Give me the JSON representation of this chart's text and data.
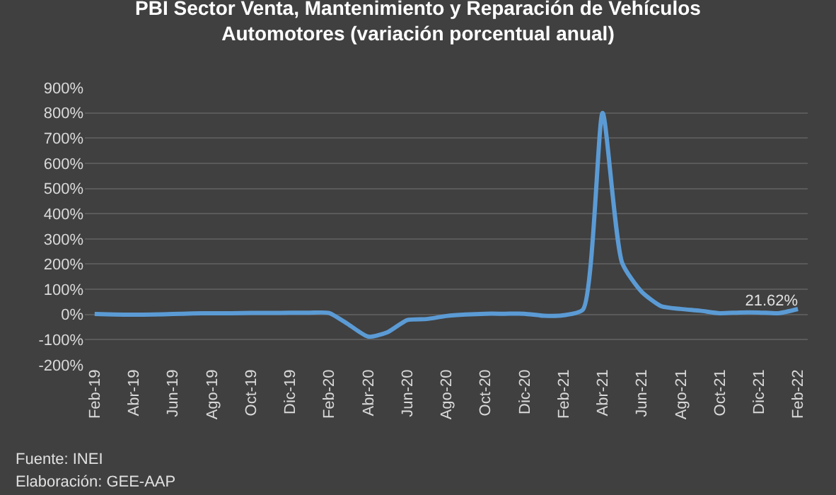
{
  "chart_data": {
    "type": "line",
    "title": "PBI Sector Venta, Mantenimiento y Reparación de Vehículos\nAutomotores (variación porcentual anual)",
    "categories": [
      "Feb-19",
      null,
      "Abr-19",
      null,
      "Jun-19",
      null,
      "Ago-19",
      null,
      "Oct-19",
      null,
      "Dic-19",
      null,
      "Feb-20",
      null,
      "Abr-20",
      null,
      "Jun-20",
      null,
      "Ago-20",
      null,
      "Oct-20",
      null,
      "Dic-20",
      null,
      "Feb-21",
      null,
      "Abr-21",
      null,
      "Jun-21",
      null,
      "Ago-21",
      null,
      "Oct-21",
      null,
      "Dic-21",
      null,
      "Feb-22"
    ],
    "series": [
      {
        "color": "#5b9bd5",
        "values": [
          2,
          0,
          -1,
          0,
          2,
          4,
          5,
          5,
          6,
          6,
          7,
          7,
          6,
          -40,
          -88,
          -70,
          -22,
          -18,
          -6,
          0,
          3,
          3,
          3,
          -5,
          -3,
          20,
          800,
          205,
          90,
          33,
          22,
          15,
          5,
          8,
          8,
          5,
          21.62
        ],
        "value_labels": [
          null,
          null,
          null,
          null,
          null,
          null,
          null,
          null,
          null,
          null,
          null,
          null,
          null,
          null,
          null,
          null,
          null,
          null,
          null,
          null,
          null,
          null,
          null,
          null,
          null,
          null,
          null,
          null,
          null,
          null,
          null,
          null,
          null,
          null,
          null,
          null,
          "21.62%"
        ]
      }
    ],
    "ylim": [
      -200,
      900
    ],
    "yticks": [
      {
        "value": -200,
        "label": "-200%"
      },
      {
        "value": -100,
        "label": "-100%"
      },
      {
        "value": 0,
        "label": "0%"
      },
      {
        "value": 100,
        "label": "100%"
      },
      {
        "value": 200,
        "label": "200%"
      },
      {
        "value": 300,
        "label": "300%"
      },
      {
        "value": 400,
        "label": "400%"
      },
      {
        "value": 500,
        "label": "500%"
      },
      {
        "value": 600,
        "label": "600%"
      },
      {
        "value": 700,
        "label": "700%"
      },
      {
        "value": 800,
        "label": "800%"
      },
      {
        "value": 900,
        "label": "900%"
      }
    ],
    "grid": "y",
    "marker": "none",
    "line_style": "solid",
    "annotations": [
      "Fuente: INEI",
      "Elaboración: GEE-AAP"
    ]
  }
}
